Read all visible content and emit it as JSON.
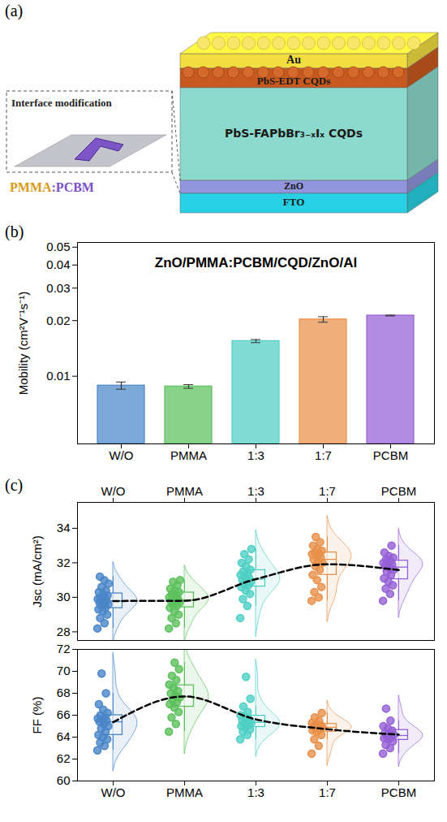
{
  "diagram": {
    "panel": "(a)",
    "layers": [
      "Au",
      "PbS-EDT CQDs",
      "PbS-FAPbBr₃₋ₓIₓ CQDs",
      "ZnO",
      "FTO"
    ],
    "inset": {
      "title": "Interface modification",
      "label": "PMMA:PCBM"
    }
  },
  "chart_data": [
    {
      "panel": "(b)",
      "type": "bar",
      "title": "ZnO/PMMA:PCBM/CQD/ZnO/Al",
      "categories": [
        "W/O",
        "PMMA",
        "1:3",
        "1:7",
        "PCBM"
      ],
      "values": [
        0.0089,
        0.0088,
        0.0155,
        0.0203,
        0.0213
      ],
      "errors": [
        0.0004,
        0.0002,
        0.0003,
        0.0007,
        0.0001
      ],
      "colors": [
        "#4a86c8",
        "#5cc05c",
        "#4fcfc4",
        "#e8904a",
        "#9560d6"
      ],
      "y_label": "Mobility (cm²V⁻¹s⁻¹)",
      "ylim": [
        0.0043,
        0.053
      ],
      "yticks": [
        0.01,
        0.02,
        0.03,
        0.04,
        0.05
      ],
      "log": "y",
      "grid": false
    },
    {
      "panel": "(c)",
      "type": "box",
      "categories": [
        "W/O",
        "PMMA",
        "1:3",
        "1:7",
        "PCBM"
      ],
      "colors": [
        "#4a86c8",
        "#5cc05c",
        "#4fcfc4",
        "#e8904a",
        "#9560d6"
      ],
      "y_label": "Jsc (mA/cm²)",
      "values": [
        [
          28.2,
          28.5,
          28.8,
          29.0,
          29.2,
          29.3,
          29.4,
          29.5,
          29.6,
          29.6,
          29.7,
          29.8,
          29.8,
          29.9,
          30.0,
          30.0,
          30.1,
          30.2,
          30.3,
          30.4,
          30.6,
          30.8,
          31.0,
          31.2
        ],
        [
          28.2,
          28.5,
          28.8,
          29.0,
          29.2,
          29.4,
          29.5,
          29.6,
          29.7,
          29.8,
          29.8,
          29.9,
          30.0,
          30.0,
          30.1,
          30.2,
          30.3,
          30.4,
          30.5,
          30.7,
          30.9,
          31.0
        ],
        [
          28.8,
          29.5,
          29.9,
          30.2,
          30.4,
          30.6,
          30.7,
          30.8,
          30.9,
          31.0,
          31.0,
          31.1,
          31.2,
          31.3,
          31.4,
          31.5,
          31.6,
          31.8,
          32.0,
          32.2,
          32.5,
          32.8
        ],
        [
          29.8,
          30.0,
          30.3,
          30.6,
          31.0,
          31.3,
          31.6,
          31.8,
          32.0,
          32.1,
          32.2,
          32.3,
          32.4,
          32.5,
          32.5,
          32.6,
          32.7,
          32.8,
          33.0,
          33.2,
          33.5
        ],
        [
          29.8,
          30.2,
          30.5,
          30.7,
          30.9,
          31.1,
          31.3,
          31.5,
          31.6,
          31.7,
          31.8,
          31.9,
          32.0,
          32.0,
          32.1,
          32.2,
          32.3,
          32.4,
          32.6,
          33.0
        ]
      ],
      "ylim": [
        27.5,
        35.5
      ],
      "yticks": [
        28,
        30,
        32,
        34
      ],
      "grid": false
    },
    {
      "type": "box",
      "categories": [
        "W/O",
        "PMMA",
        "1:3",
        "1:7",
        "PCBM"
      ],
      "colors": [
        "#4a86c8",
        "#5cc05c",
        "#4fcfc4",
        "#e8904a",
        "#9560d6"
      ],
      "y_label": "FF (%)",
      "values": [
        [
          62.8,
          63.2,
          63.5,
          63.8,
          64.0,
          64.2,
          64.5,
          64.8,
          65.0,
          65.2,
          65.4,
          65.5,
          65.6,
          65.7,
          65.8,
          66.0,
          66.2,
          66.5,
          67.0,
          68.0,
          69.8
        ],
        [
          64.5,
          65.2,
          65.8,
          66.3,
          66.7,
          67.0,
          67.2,
          67.4,
          67.6,
          67.8,
          68.0,
          68.2,
          68.5,
          68.8,
          69.2,
          69.6,
          70.2,
          70.8
        ],
        [
          63.8,
          64.2,
          64.5,
          64.7,
          64.9,
          65.0,
          65.1,
          65.2,
          65.3,
          65.4,
          65.5,
          65.6,
          65.8,
          66.0,
          66.3,
          66.8,
          67.5,
          69.5
        ],
        [
          62.5,
          63.2,
          63.8,
          64.2,
          64.5,
          64.6,
          64.7,
          64.8,
          64.9,
          65.0,
          65.0,
          65.1,
          65.2,
          65.3,
          65.5,
          65.8,
          66.2
        ],
        [
          62.5,
          63.0,
          63.3,
          63.6,
          63.8,
          63.9,
          64.0,
          64.1,
          64.2,
          64.3,
          64.4,
          64.6,
          64.8,
          65.0,
          65.5,
          66.6
        ]
      ],
      "ylim": [
        60,
        72
      ],
      "yticks": [
        60,
        62,
        64,
        66,
        68,
        70,
        72
      ],
      "grid": false
    }
  ]
}
